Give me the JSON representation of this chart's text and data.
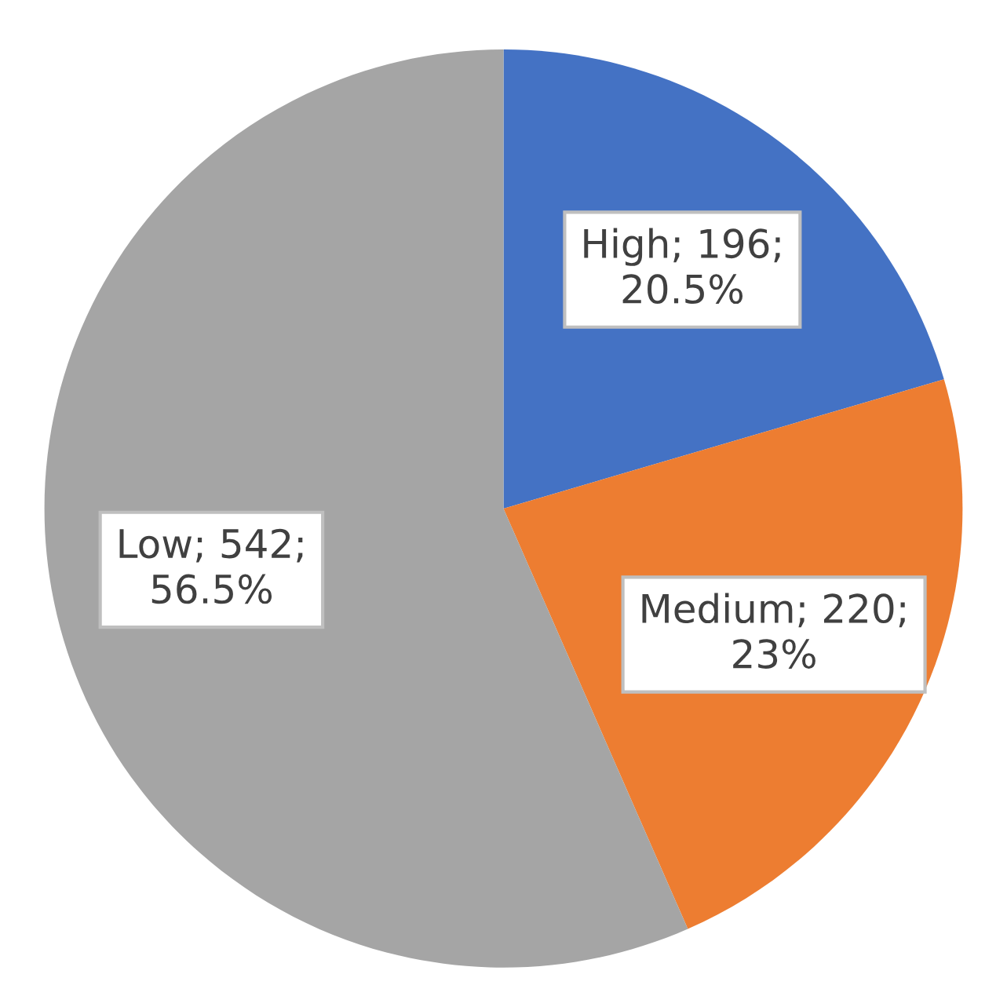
{
  "chart_data": {
    "type": "pie",
    "categories": [
      "High",
      "Medium",
      "Low"
    ],
    "values": [
      196,
      220,
      542
    ],
    "value_labels": [
      "196;\n20.5%",
      "220;\n23%",
      "542;\n56.5%"
    ],
    "colors": [
      "#4472c4",
      "#ed7d31",
      "#a5a5a5"
    ]
  }
}
